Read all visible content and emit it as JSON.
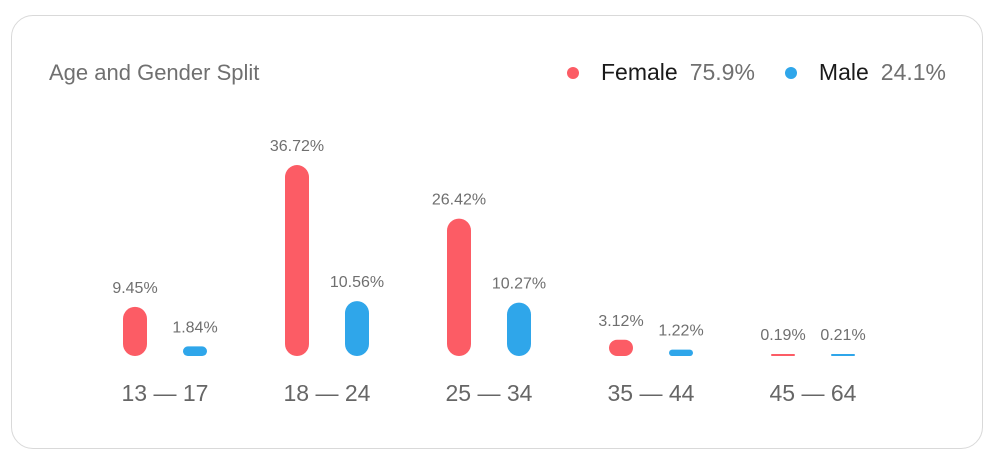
{
  "header": {
    "title": "Age and Gender Split"
  },
  "legend": [
    {
      "name": "Female",
      "percent": "75.9%",
      "color": "#fc5c65"
    },
    {
      "name": "Male",
      "percent": "24.1%",
      "color": "#2fa6ea"
    }
  ],
  "chart_data": {
    "type": "bar",
    "title": "Age and Gender Split",
    "categories": [
      "13 — 17",
      "18 — 24",
      "25 — 34",
      "35 — 44",
      "45 — 64"
    ],
    "series": [
      {
        "name": "Female",
        "color": "#fc5c65",
        "values": [
          9.45,
          36.72,
          26.42,
          3.12,
          0.19
        ],
        "labels": [
          "9.45%",
          "36.72%",
          "26.42%",
          "3.12%",
          "0.19%"
        ]
      },
      {
        "name": "Male",
        "color": "#2fa6ea",
        "values": [
          1.84,
          10.56,
          10.27,
          1.22,
          0.21
        ],
        "labels": [
          "1.84%",
          "10.56%",
          "10.27%",
          "1.22%",
          "0.21%"
        ]
      }
    ],
    "legend_position": "top-right",
    "grid": false,
    "axes_visible": false
  }
}
